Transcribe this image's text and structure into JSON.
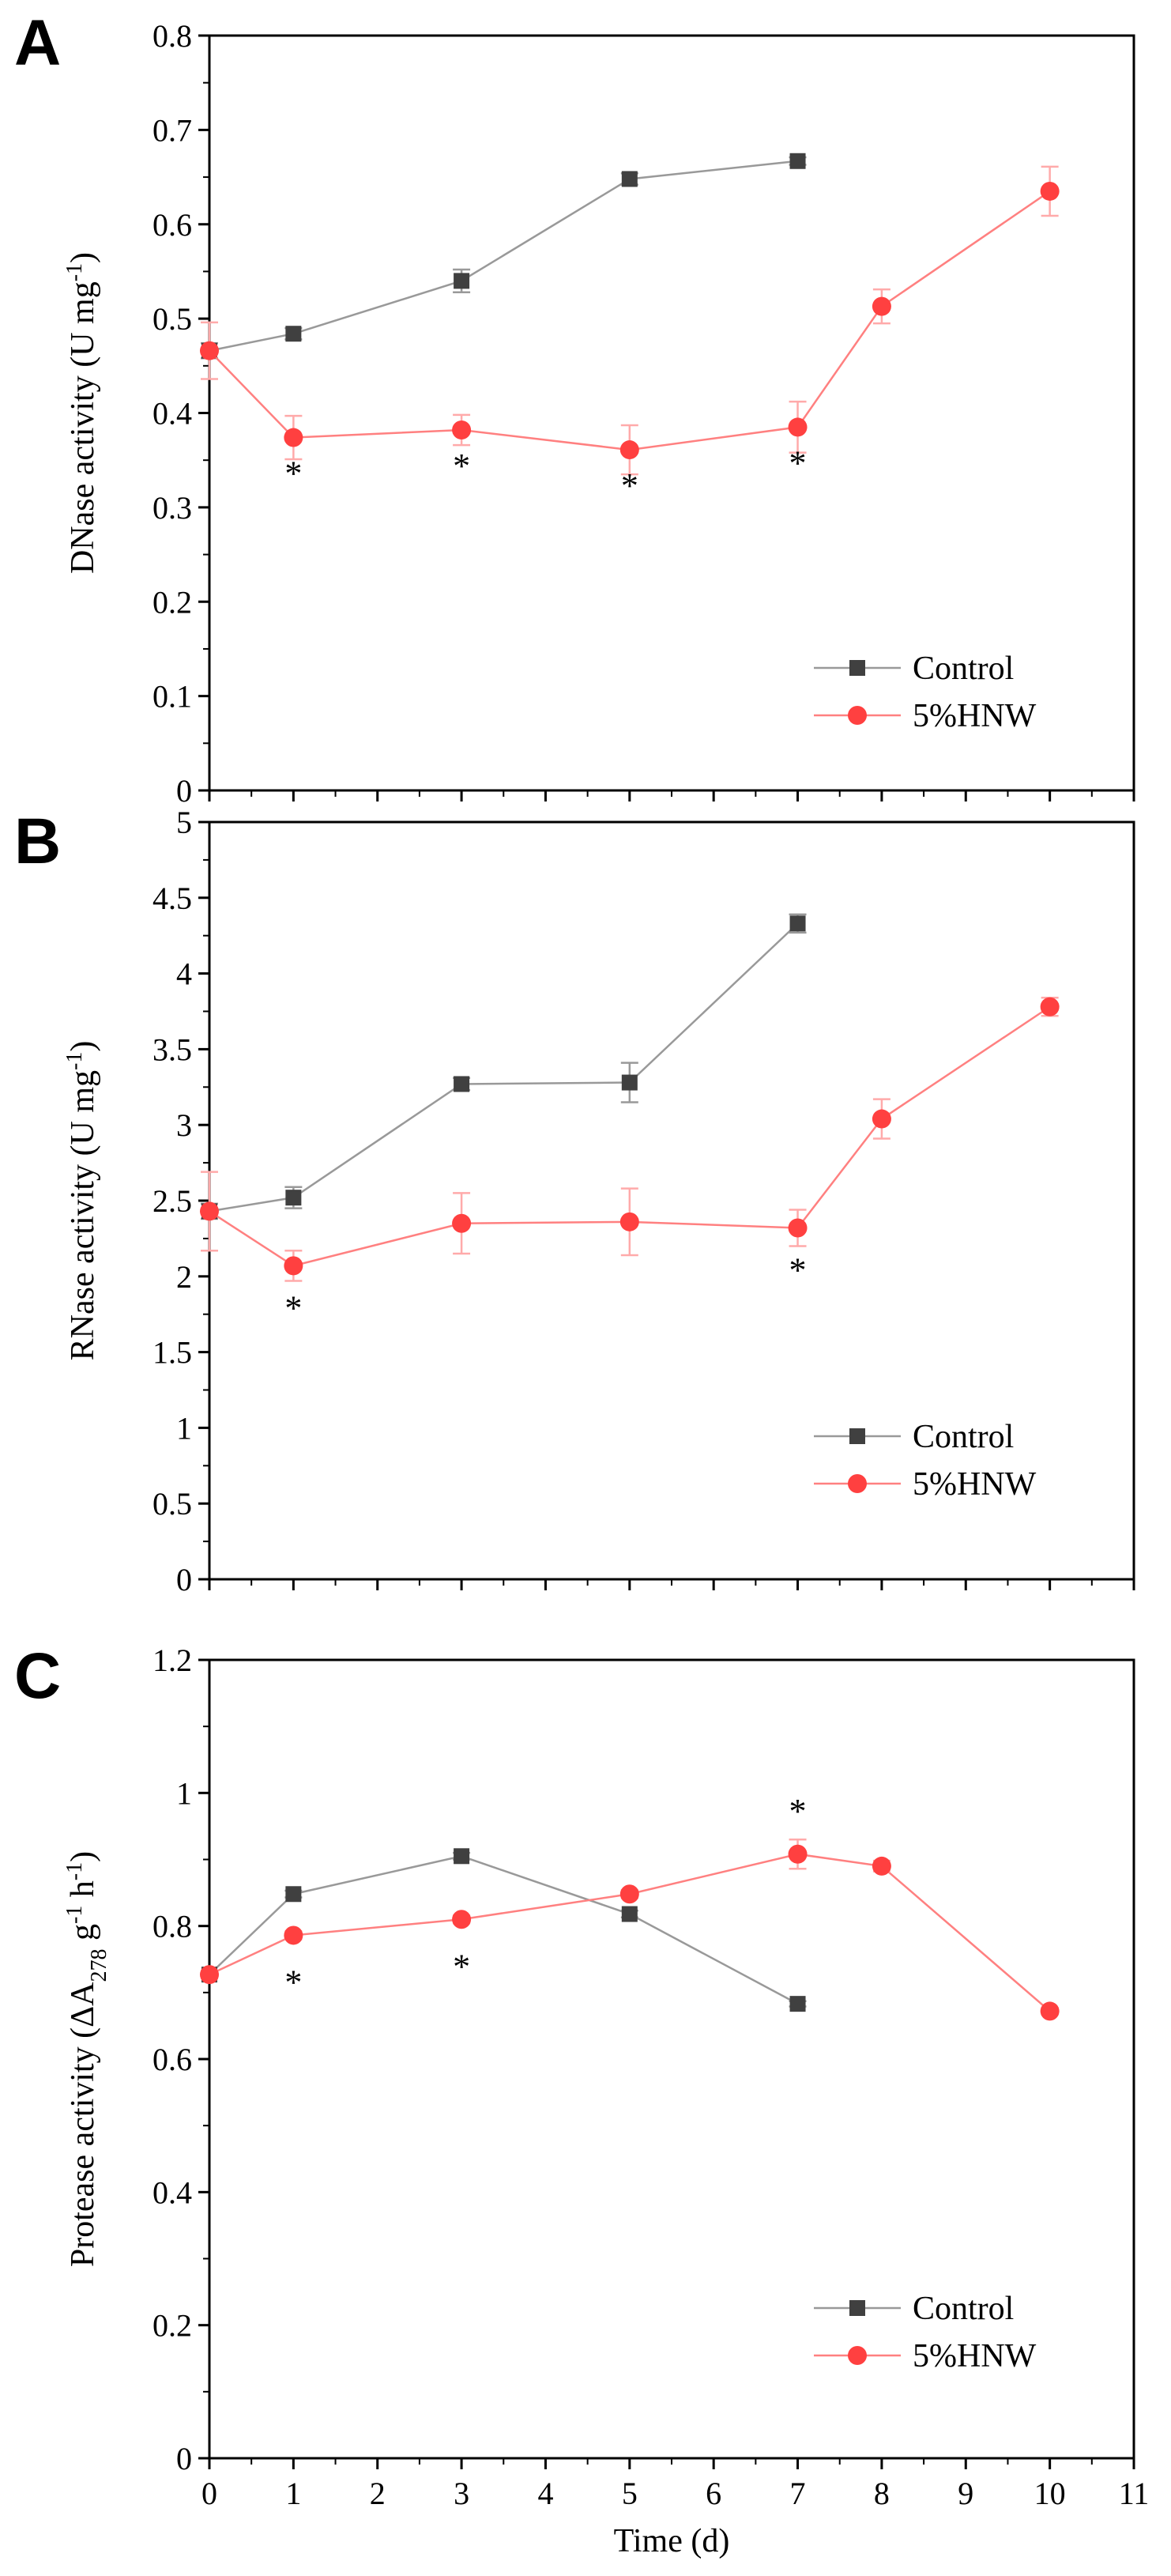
{
  "figure": {
    "xlabel": "Time (d)",
    "x_ticks": [
      "0",
      "1",
      "2",
      "3",
      "4",
      "5",
      "6",
      "7",
      "8",
      "9",
      "10",
      "11"
    ]
  },
  "colors": {
    "control": "#404040",
    "control_line": "#999999",
    "hnw": "#ff4040",
    "hnw_line": "#ff8080",
    "error": "#ffaaaa",
    "error_control": "#999999"
  },
  "chart_data": [
    {
      "panel": "A",
      "type": "line",
      "ylabel_main": "DNase activity (U mg",
      "ylabel_sup": "-1",
      "ylabel_tail": ")",
      "ylim": [
        0,
        0.8
      ],
      "xlim": [
        0,
        11
      ],
      "y_ticks": [
        "0",
        "0.1",
        "0.2",
        "0.3",
        "0.4",
        "0.5",
        "0.6",
        "0.7",
        "0.8"
      ],
      "legend": [
        "Control",
        "5%HNW"
      ],
      "legend_position": "bottom-right",
      "series": [
        {
          "name": "Control",
          "x": [
            0,
            1,
            3,
            5,
            7
          ],
          "values": [
            0.466,
            0.484,
            0.54,
            0.648,
            0.667
          ],
          "errors": [
            0.008,
            0.006,
            0.012,
            0.006,
            0.004
          ]
        },
        {
          "name": "5%HNW",
          "x": [
            0,
            1,
            3,
            5,
            7,
            8,
            10
          ],
          "values": [
            0.466,
            0.374,
            0.382,
            0.361,
            0.385,
            0.513,
            0.635
          ],
          "errors": [
            0.03,
            0.023,
            0.016,
            0.026,
            0.027,
            0.018,
            0.026
          ]
        }
      ],
      "significance": [
        {
          "x": 1,
          "label": "*"
        },
        {
          "x": 3,
          "label": "*"
        },
        {
          "x": 5,
          "label": "*"
        },
        {
          "x": 7,
          "label": "*"
        }
      ]
    },
    {
      "panel": "B",
      "type": "line",
      "ylabel_main": "RNase activity (U mg",
      "ylabel_sup": "-1",
      "ylabel_tail": ")",
      "ylim": [
        0,
        5
      ],
      "xlim": [
        0,
        11
      ],
      "y_ticks": [
        "0",
        "0.5",
        "1",
        "1.5",
        "2",
        "2.5",
        "3",
        "3.5",
        "4",
        "4.5",
        "5"
      ],
      "legend": [
        "Control",
        "5%HNW"
      ],
      "legend_position": "bottom-right",
      "series": [
        {
          "name": "Control",
          "x": [
            0,
            1,
            3,
            5,
            7
          ],
          "values": [
            2.43,
            2.52,
            3.27,
            3.28,
            4.33
          ],
          "errors": [
            0.05,
            0.07,
            0.04,
            0.13,
            0.06
          ]
        },
        {
          "name": "5%HNW",
          "x": [
            0,
            1,
            3,
            5,
            7,
            8,
            10
          ],
          "values": [
            2.43,
            2.07,
            2.35,
            2.36,
            2.32,
            3.04,
            3.78
          ],
          "errors": [
            0.26,
            0.1,
            0.2,
            0.22,
            0.12,
            0.13,
            0.06
          ]
        }
      ],
      "significance": [
        {
          "x": 1,
          "label": "*"
        },
        {
          "x": 7,
          "label": "*"
        }
      ]
    },
    {
      "panel": "C",
      "type": "line",
      "ylabel_main": "Protease activity (ΔA",
      "ylabel_sub": "278",
      "ylabel_mid": " g",
      "ylabel_sup": "-1",
      "ylabel_mid2": " h",
      "ylabel_sup2": "-1",
      "ylabel_tail": ")",
      "ylim": [
        0,
        1.2
      ],
      "xlim": [
        0,
        11
      ],
      "y_ticks": [
        "0",
        "0.2",
        "0.4",
        "0.6",
        "0.8",
        "1",
        "1.2"
      ],
      "legend": [
        "Control",
        "5%HNW"
      ],
      "legend_position": "bottom-right",
      "series": [
        {
          "name": "Control",
          "x": [
            0,
            1,
            3,
            5,
            7
          ],
          "values": [
            0.727,
            0.848,
            0.905,
            0.818,
            0.683
          ],
          "errors": [
            0.004,
            0.005,
            0.005,
            0.005,
            0.004
          ]
        },
        {
          "name": "5%HNW",
          "x": [
            0,
            1,
            3,
            5,
            7,
            8,
            10
          ],
          "values": [
            0.727,
            0.786,
            0.81,
            0.848,
            0.908,
            0.89,
            0.672
          ],
          "errors": [
            0.006,
            0.006,
            0.006,
            0.006,
            0.022,
            0.008,
            0.005
          ]
        }
      ],
      "significance": [
        {
          "x": 1,
          "label": "*"
        },
        {
          "x": 3,
          "label": "*"
        },
        {
          "x": 7,
          "label": "*"
        }
      ]
    }
  ]
}
